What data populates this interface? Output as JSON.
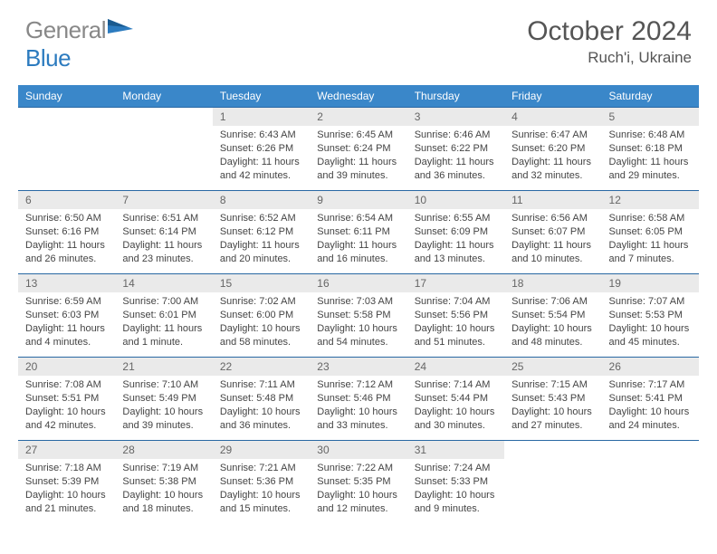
{
  "logo": {
    "part1": "General",
    "part2": "Blue"
  },
  "title": "October 2024",
  "location": "Ruch'i, Ukraine",
  "colors": {
    "header_bg": "#3a87c9",
    "header_text": "#ffffff",
    "daynum_bg": "#eaeaea",
    "border": "#2968a3",
    "logo_gray": "#888888",
    "logo_blue": "#2c7bbf"
  },
  "weekdays": [
    "Sunday",
    "Monday",
    "Tuesday",
    "Wednesday",
    "Thursday",
    "Friday",
    "Saturday"
  ],
  "weeks": [
    [
      null,
      null,
      {
        "n": "1",
        "sunrise": "6:43 AM",
        "sunset": "6:26 PM",
        "daylight": "11 hours and 42 minutes."
      },
      {
        "n": "2",
        "sunrise": "6:45 AM",
        "sunset": "6:24 PM",
        "daylight": "11 hours and 39 minutes."
      },
      {
        "n": "3",
        "sunrise": "6:46 AM",
        "sunset": "6:22 PM",
        "daylight": "11 hours and 36 minutes."
      },
      {
        "n": "4",
        "sunrise": "6:47 AM",
        "sunset": "6:20 PM",
        "daylight": "11 hours and 32 minutes."
      },
      {
        "n": "5",
        "sunrise": "6:48 AM",
        "sunset": "6:18 PM",
        "daylight": "11 hours and 29 minutes."
      }
    ],
    [
      {
        "n": "6",
        "sunrise": "6:50 AM",
        "sunset": "6:16 PM",
        "daylight": "11 hours and 26 minutes."
      },
      {
        "n": "7",
        "sunrise": "6:51 AM",
        "sunset": "6:14 PM",
        "daylight": "11 hours and 23 minutes."
      },
      {
        "n": "8",
        "sunrise": "6:52 AM",
        "sunset": "6:12 PM",
        "daylight": "11 hours and 20 minutes."
      },
      {
        "n": "9",
        "sunrise": "6:54 AM",
        "sunset": "6:11 PM",
        "daylight": "11 hours and 16 minutes."
      },
      {
        "n": "10",
        "sunrise": "6:55 AM",
        "sunset": "6:09 PM",
        "daylight": "11 hours and 13 minutes."
      },
      {
        "n": "11",
        "sunrise": "6:56 AM",
        "sunset": "6:07 PM",
        "daylight": "11 hours and 10 minutes."
      },
      {
        "n": "12",
        "sunrise": "6:58 AM",
        "sunset": "6:05 PM",
        "daylight": "11 hours and 7 minutes."
      }
    ],
    [
      {
        "n": "13",
        "sunrise": "6:59 AM",
        "sunset": "6:03 PM",
        "daylight": "11 hours and 4 minutes."
      },
      {
        "n": "14",
        "sunrise": "7:00 AM",
        "sunset": "6:01 PM",
        "daylight": "11 hours and 1 minute."
      },
      {
        "n": "15",
        "sunrise": "7:02 AM",
        "sunset": "6:00 PM",
        "daylight": "10 hours and 58 minutes."
      },
      {
        "n": "16",
        "sunrise": "7:03 AM",
        "sunset": "5:58 PM",
        "daylight": "10 hours and 54 minutes."
      },
      {
        "n": "17",
        "sunrise": "7:04 AM",
        "sunset": "5:56 PM",
        "daylight": "10 hours and 51 minutes."
      },
      {
        "n": "18",
        "sunrise": "7:06 AM",
        "sunset": "5:54 PM",
        "daylight": "10 hours and 48 minutes."
      },
      {
        "n": "19",
        "sunrise": "7:07 AM",
        "sunset": "5:53 PM",
        "daylight": "10 hours and 45 minutes."
      }
    ],
    [
      {
        "n": "20",
        "sunrise": "7:08 AM",
        "sunset": "5:51 PM",
        "daylight": "10 hours and 42 minutes."
      },
      {
        "n": "21",
        "sunrise": "7:10 AM",
        "sunset": "5:49 PM",
        "daylight": "10 hours and 39 minutes."
      },
      {
        "n": "22",
        "sunrise": "7:11 AM",
        "sunset": "5:48 PM",
        "daylight": "10 hours and 36 minutes."
      },
      {
        "n": "23",
        "sunrise": "7:12 AM",
        "sunset": "5:46 PM",
        "daylight": "10 hours and 33 minutes."
      },
      {
        "n": "24",
        "sunrise": "7:14 AM",
        "sunset": "5:44 PM",
        "daylight": "10 hours and 30 minutes."
      },
      {
        "n": "25",
        "sunrise": "7:15 AM",
        "sunset": "5:43 PM",
        "daylight": "10 hours and 27 minutes."
      },
      {
        "n": "26",
        "sunrise": "7:17 AM",
        "sunset": "5:41 PM",
        "daylight": "10 hours and 24 minutes."
      }
    ],
    [
      {
        "n": "27",
        "sunrise": "7:18 AM",
        "sunset": "5:39 PM",
        "daylight": "10 hours and 21 minutes."
      },
      {
        "n": "28",
        "sunrise": "7:19 AM",
        "sunset": "5:38 PM",
        "daylight": "10 hours and 18 minutes."
      },
      {
        "n": "29",
        "sunrise": "7:21 AM",
        "sunset": "5:36 PM",
        "daylight": "10 hours and 15 minutes."
      },
      {
        "n": "30",
        "sunrise": "7:22 AM",
        "sunset": "5:35 PM",
        "daylight": "10 hours and 12 minutes."
      },
      {
        "n": "31",
        "sunrise": "7:24 AM",
        "sunset": "5:33 PM",
        "daylight": "10 hours and 9 minutes."
      },
      null,
      null
    ]
  ],
  "labels": {
    "sunrise": "Sunrise:",
    "sunset": "Sunset:",
    "daylight": "Daylight:"
  }
}
